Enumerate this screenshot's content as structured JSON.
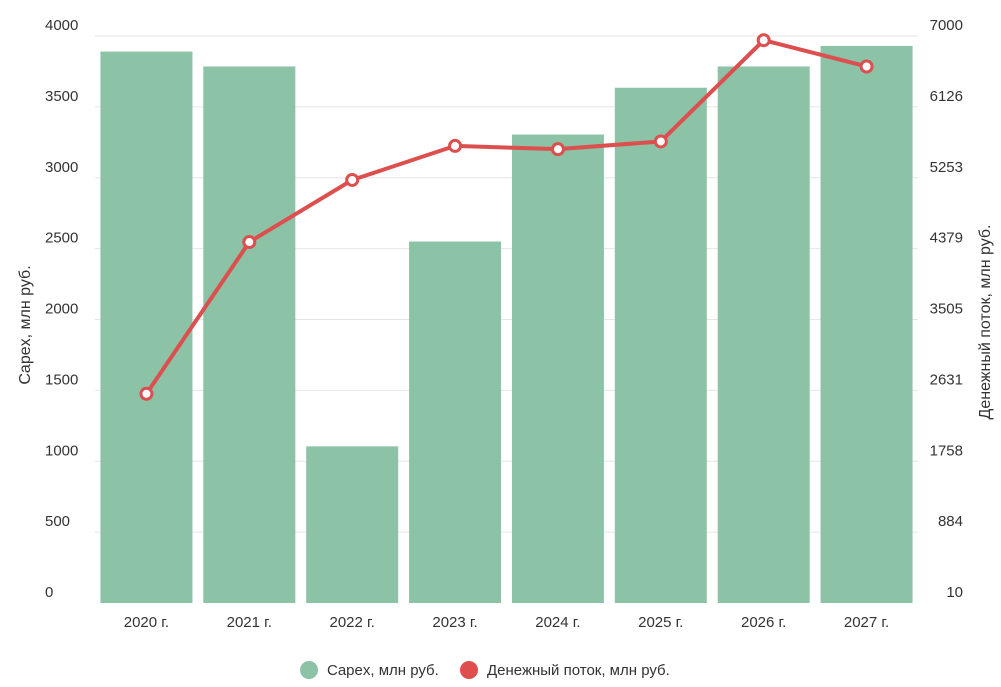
{
  "chart_data": {
    "type": "bar",
    "categories": [
      "2020 г.",
      "2021 г.",
      "2022 г.",
      "2023 г.",
      "2024 г.",
      "2025 г.",
      "2026 г.",
      "2027 г."
    ],
    "series": [
      {
        "name": "Capex, млн руб.",
        "type": "bar",
        "axis": "left",
        "color": "#8cc2a5",
        "values": [
          3890,
          3785,
          1105,
          2550,
          3305,
          3635,
          3785,
          3930
        ]
      },
      {
        "name": "Денежный поток, млн руб.",
        "type": "line",
        "axis": "right",
        "color": "#dd4f4f",
        "values": [
          2589,
          4460,
          5225,
          5645,
          5605,
          5700,
          6948,
          6624
        ]
      }
    ],
    "y_left": {
      "label": "Capex, млн руб.",
      "ylim": [
        0,
        4000
      ],
      "ticks": [
        "0",
        "500",
        "1000",
        "1500",
        "2000",
        "2500",
        "3000",
        "3500",
        "4000"
      ]
    },
    "y_right": {
      "label": "Денежный поток, млн руб.",
      "ylim": [
        10,
        7000
      ],
      "ticks": [
        "10",
        "884",
        "1758",
        "2631",
        "3505",
        "4379",
        "5253",
        "6126",
        "7000"
      ]
    },
    "grid": true,
    "legend": "bottom-center"
  }
}
